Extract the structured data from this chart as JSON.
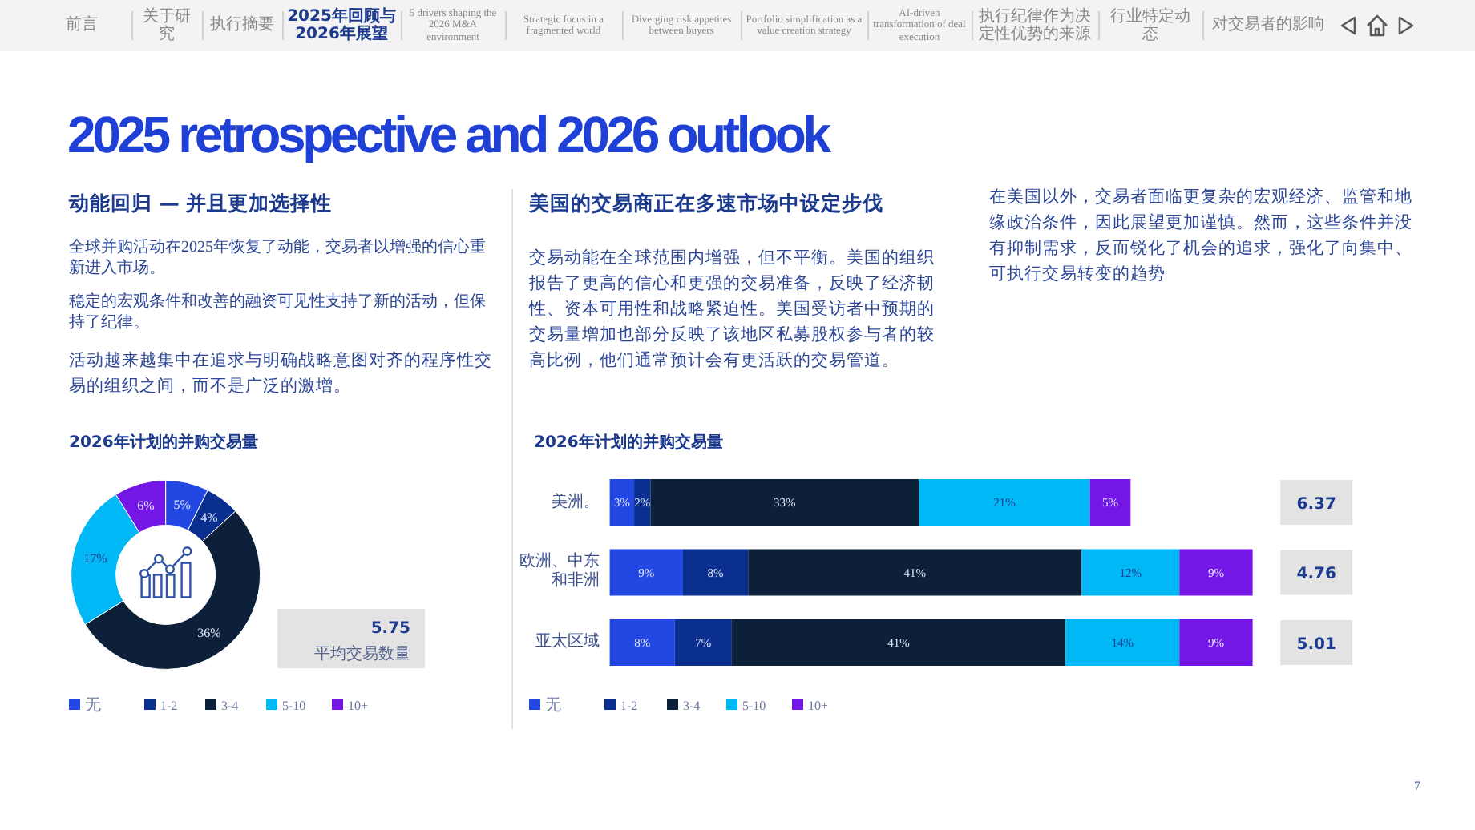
{
  "chart_data": [
    {
      "type": "other",
      "annotations": [
        "前言",
        "关于研究",
        "执行摘要",
        "2025年回顾与2026年展望",
        "5 drivers shaping the 2026 M&A environment",
        "Strategic focus in a fragmented world",
        "Diverging risk appetites between buyers",
        "Portfolio simplification as a value creation strategy",
        "AI-driven transformation of deal execution",
        "执行纪律作为决定性优势的来源",
        "行业特定动态",
        "对交易者的影响"
      ]
    },
    {
      "type": "other",
      "title": "2025 retrospective and 2026 outlook"
    },
    {
      "type": "other",
      "title": "动能回归 — 并且更加选择性",
      "annotations": [
        "全球并购活动在2025年恢复了动能，交易者以增强的信心重新进入市场。",
        "稳定的宏观条件和改善的融资可见性支持了新的活动，但保持了纪律。",
        "活动越来越集中在追求与明确战略意图对齐的程序性交易的组织之间，而不是广泛的激增。"
      ]
    },
    {
      "type": "other",
      "title": "美国的交易商正在多速市场中设定步伐",
      "annotations": [
        "交易动能在全球范围内增强，但不平衡。美国的组织报告了更高的信心和更强的交易准备，反映了经济韧性、资本可用性和战略紧迫性。美国受访者中预期的交易量增加也部分反映了该地区私募股权参与者的较高比例，他们通常预计会有更活跃的交易管道。"
      ]
    },
    {
      "type": "other",
      "annotations": [
        "在美国以外，交易者面临更复杂的宏观经济、监管和地缘政治条件，因此展望更加谨慎。然而，这些条件并没有抑制需求，反而锐化了机会的追求，强化了向集中、可执行交易转变的趋势"
      ]
    },
    {
      "type": "donut",
      "title": "2026年计划的并购交易量",
      "categories": [
        "无",
        "1-2",
        "3-4",
        "5-10",
        "10+"
      ],
      "values": [
        5,
        4,
        36,
        17,
        6
      ],
      "value_labels": [
        "5%",
        "4%",
        "36%",
        "17%",
        "6%"
      ],
      "colors": [
        "#2347e2",
        "#0a2f8e",
        "#0c2139",
        "#00b8f5",
        "#7316e6"
      ],
      "legend": "bottom",
      "annotations": [
        "5.75",
        "平均交易数量"
      ]
    },
    {
      "type": "bar",
      "orientation": "horizontal",
      "stacked": true,
      "title": "2026年计划的并购交易量",
      "categories": [
        "美洲。",
        "欧洲、中东和非洲",
        "亚太区域"
      ],
      "series": [
        {
          "name": "无",
          "color": "#2347e2",
          "values": [
            3,
            9,
            8
          ],
          "value_labels": [
            "3%",
            "9%",
            "8%"
          ]
        },
        {
          "name": "1-2",
          "color": "#0a2f8e",
          "values": [
            2,
            8,
            7
          ],
          "value_labels": [
            "2%",
            "8%",
            "7%"
          ]
        },
        {
          "name": "3-4",
          "color": "#0c2139",
          "values": [
            33,
            41,
            41
          ],
          "value_labels": [
            "33%",
            "41%",
            "41%"
          ]
        },
        {
          "name": "5-10",
          "color": "#00b8f5",
          "values": [
            21,
            12,
            14
          ],
          "value_labels": [
            "21%",
            "12%",
            "14%"
          ]
        },
        {
          "name": "10+",
          "color": "#7316e6",
          "values": [
            5,
            9,
            9
          ],
          "value_labels": [
            "5%",
            "9%",
            "9%"
          ]
        }
      ],
      "legend": "bottom",
      "annotations": [
        "6.37",
        "4.76",
        "5.01"
      ]
    },
    {
      "type": "other",
      "annotations": [
        "7"
      ]
    }
  ]
}
